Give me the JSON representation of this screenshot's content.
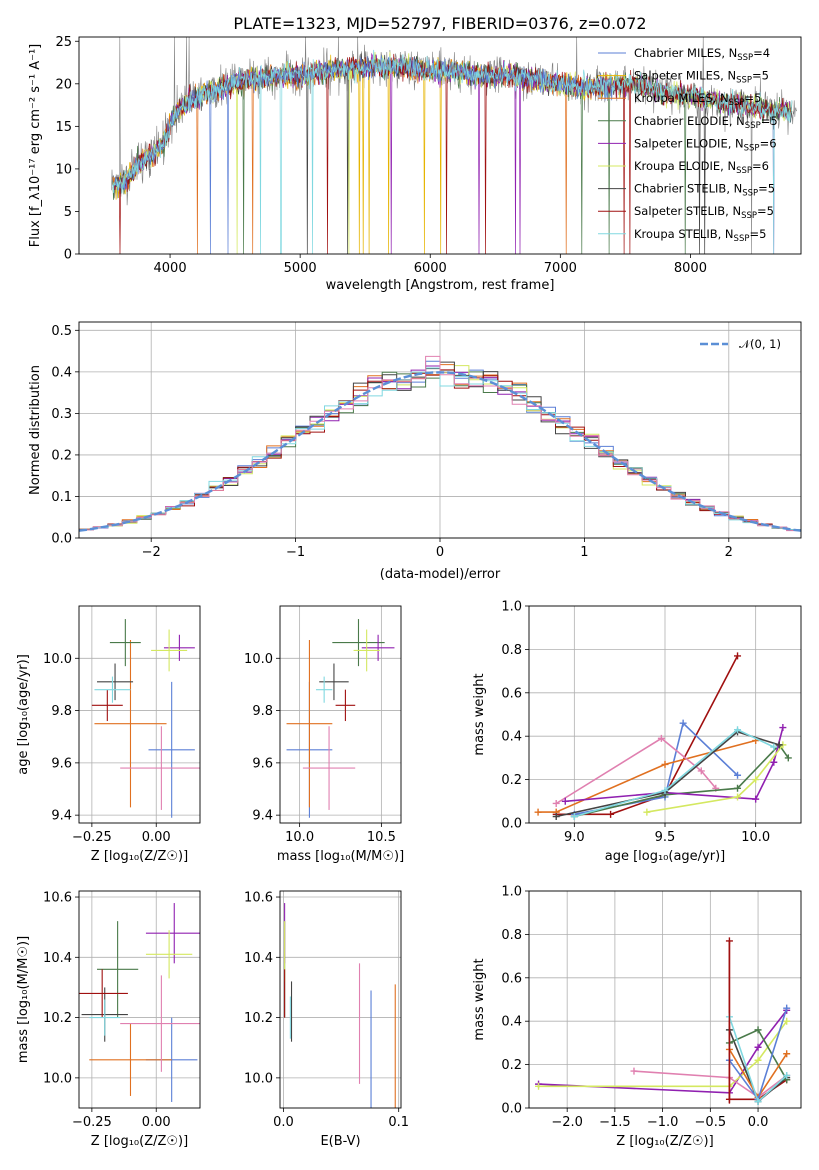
{
  "figure": {
    "title": "PLATE=1323, MJD=52797, FIBERID=0376, z=0.072"
  },
  "colors": {
    "Chabrier MILES": "#5b7fd6",
    "Salpeter MILES": "#e6b400",
    "Kroupa MILES": "#e07020",
    "Chabrier ELODIE": "#4a7a4a",
    "Salpeter ELODIE": "#9020b0",
    "Kroupa ELODIE": "#d4e860",
    "Chabrier STELIB": "#444444",
    "Salpeter STELIB": "#a01010",
    "Kroupa STELIB": "#80d8e0",
    "pink": "#e080b0",
    "data": "#808080",
    "normal": "#5b8fd6"
  },
  "chart_data": [
    {
      "id": "spectrum",
      "type": "line",
      "xlabel": "wavelength [Angstrom, rest frame]",
      "ylabel": "Flux [f_λ10⁻¹⁷ erg cm⁻² s⁻¹ A⁻¹]",
      "xlim": [
        3300,
        8850
      ],
      "ylim": [
        0,
        25.5
      ],
      "xticks": [
        4000,
        5000,
        6000,
        7000,
        8000
      ],
      "yticks": [
        0,
        5,
        10,
        15,
        20,
        25
      ],
      "continuum": {
        "x": [
          3550,
          3650,
          3750,
          3850,
          3950,
          4000,
          4100,
          4200,
          4400,
          4600,
          4800,
          5000,
          5200,
          5500,
          5800,
          6000,
          6200,
          6400,
          6600,
          6800,
          7000,
          7200,
          7400,
          7600,
          7800,
          8000,
          8200,
          8400,
          8600,
          8800
        ],
        "y": [
          8.0,
          8.5,
          10.5,
          11.5,
          13.0,
          15.5,
          17.5,
          18.5,
          19.5,
          20.5,
          21.0,
          21.0,
          21.5,
          22.0,
          22.0,
          21.5,
          21.5,
          21.0,
          21.0,
          20.5,
          20.0,
          19.5,
          20.0,
          20.0,
          19.0,
          18.5,
          18.0,
          17.5,
          17.0,
          16.5
        ]
      },
      "legend": [
        {
          "label": "Chabrier MILES, N_SSP=4",
          "text": "Chabrier MILES, N",
          "sub": "SSP",
          "n": "=4",
          "color_key": "Chabrier MILES"
        },
        {
          "label": "Salpeter MILES, N_SSP=5",
          "text": "Salpeter MILES, N",
          "sub": "SSP",
          "n": "=5",
          "color_key": "Salpeter MILES"
        },
        {
          "label": "Kroupa MILES, N_SSP=5",
          "text": "Kroupa MILES, N",
          "sub": "SSP",
          "n": "=5",
          "color_key": "Kroupa MILES"
        },
        {
          "label": "Chabrier ELODIE, N_SSP=5",
          "text": "Chabrier ELODIE, N",
          "sub": "SSP",
          "n": "=5",
          "color_key": "Chabrier ELODIE"
        },
        {
          "label": "Salpeter ELODIE, N_SSP=6",
          "text": "Salpeter ELODIE, N",
          "sub": "SSP",
          "n": "=6",
          "color_key": "Salpeter ELODIE"
        },
        {
          "label": "Kroupa ELODIE, N_SSP=6",
          "text": "Kroupa ELODIE, N",
          "sub": "SSP",
          "n": "=6",
          "color_key": "Kroupa ELODIE"
        },
        {
          "label": "Chabrier STELIB, N_SSP=5",
          "text": "Chabrier STELIB, N",
          "sub": "SSP",
          "n": "=5",
          "color_key": "Chabrier STELIB"
        },
        {
          "label": "Salpeter STELIB, N_SSP=5",
          "text": "Salpeter STELIB, N",
          "sub": "SSP",
          "n": "=5",
          "color_key": "Salpeter STELIB"
        },
        {
          "label": "Kroupa STELIB, N_SSP=5",
          "text": "Kroupa STELIB, N",
          "sub": "SSP",
          "n": "=5",
          "color_key": "Kroupa STELIB"
        }
      ],
      "legend_position": "right"
    },
    {
      "id": "residuals",
      "type": "histogram",
      "xlabel": "(data-model)/error",
      "ylabel": "Normed distribution",
      "xlim": [
        -2.5,
        2.5
      ],
      "ylim": [
        0,
        0.52
      ],
      "xticks": [
        -2,
        -1,
        0,
        1,
        2
      ],
      "yticks": [
        0.0,
        0.1,
        0.2,
        0.3,
        0.4,
        0.5
      ],
      "bin_width": 0.1,
      "reference": {
        "label": "𝒩(0, 1)",
        "mean": 0,
        "sigma": 1
      },
      "legend_position": "top-right"
    },
    {
      "id": "age-vs-Z",
      "type": "errorbar",
      "xlabel": "Z [log₁₀(Z/Z☉)]",
      "ylabel": "age  [log₁₀(age/yr)]",
      "xlim": [
        -0.3,
        0.17
      ],
      "ylim": [
        9.37,
        10.2
      ],
      "xticks": [
        -0.25,
        0.0
      ],
      "yticks": [
        9.4,
        9.6,
        9.8,
        10.0
      ],
      "points": [
        {
          "model": "Chabrier MILES",
          "x": 0.06,
          "xerr": 0.09,
          "y": 9.65,
          "yerr": 0.26
        },
        {
          "model": "Kroupa MILES",
          "x": -0.1,
          "xerr": 0.14,
          "y": 9.75,
          "yerr": 0.32
        },
        {
          "model": "pink",
          "x": 0.02,
          "xerr": 0.16,
          "y": 9.58,
          "yerr": 0.16
        },
        {
          "model": "Chabrier ELODIE",
          "x": -0.12,
          "xerr": 0.06,
          "y": 10.06,
          "yerr": 0.09
        },
        {
          "model": "Salpeter ELODIE",
          "x": 0.09,
          "xerr": 0.06,
          "y": 10.04,
          "yerr": 0.05
        },
        {
          "model": "Kroupa ELODIE",
          "x": 0.05,
          "xerr": 0.07,
          "y": 10.03,
          "yerr": 0.08
        },
        {
          "model": "Chabrier STELIB",
          "x": -0.16,
          "xerr": 0.07,
          "y": 9.91,
          "yerr": 0.07
        },
        {
          "model": "Salpeter STELIB",
          "x": -0.19,
          "xerr": 0.06,
          "y": 9.82,
          "yerr": 0.06
        },
        {
          "model": "Kroupa STELIB",
          "x": -0.17,
          "xerr": 0.07,
          "y": 9.88,
          "yerr": 0.05
        }
      ]
    },
    {
      "id": "age-vs-mass",
      "type": "errorbar",
      "xlabel": "mass [log₁₀(M/M☉)]",
      "ylabel": "",
      "xlim": [
        9.88,
        10.62
      ],
      "ylim": [
        9.37,
        10.2
      ],
      "xticks": [
        10.0,
        10.5
      ],
      "yticks": [
        9.4,
        9.6,
        9.8,
        10.0
      ],
      "points": [
        {
          "model": "Chabrier MILES",
          "x": 10.06,
          "xerr": 0.14,
          "y": 9.65,
          "yerr": 0.26
        },
        {
          "model": "Kroupa MILES",
          "x": 10.06,
          "xerr": 0.14,
          "y": 9.75,
          "yerr": 0.32
        },
        {
          "model": "pink",
          "x": 10.18,
          "xerr": 0.16,
          "y": 9.58,
          "yerr": 0.16
        },
        {
          "model": "Chabrier ELODIE",
          "x": 10.36,
          "xerr": 0.16,
          "y": 10.06,
          "yerr": 0.09
        },
        {
          "model": "Salpeter ELODIE",
          "x": 10.48,
          "xerr": 0.1,
          "y": 10.04,
          "yerr": 0.05
        },
        {
          "model": "Kroupa ELODIE",
          "x": 10.41,
          "xerr": 0.08,
          "y": 10.03,
          "yerr": 0.08
        },
        {
          "model": "Chabrier STELIB",
          "x": 10.21,
          "xerr": 0.09,
          "y": 9.91,
          "yerr": 0.07
        },
        {
          "model": "Salpeter STELIB",
          "x": 10.28,
          "xerr": 0.06,
          "y": 9.82,
          "yerr": 0.06
        },
        {
          "model": "Kroupa STELIB",
          "x": 10.15,
          "xerr": 0.05,
          "y": 9.88,
          "yerr": 0.05
        }
      ]
    },
    {
      "id": "mass-vs-Z",
      "type": "errorbar",
      "xlabel": "Z [log₁₀(Z/Z☉)]",
      "ylabel": "mass [log₁₀(M/M☉)]",
      "xlim": [
        -0.3,
        0.17
      ],
      "ylim": [
        9.9,
        10.62
      ],
      "xticks": [
        -0.25,
        0.0
      ],
      "yticks": [
        10.0,
        10.2,
        10.4,
        10.6
      ],
      "points": [
        {
          "model": "Chabrier MILES",
          "x": 0.06,
          "xerr": 0.1,
          "y": 10.06,
          "yerr": 0.14
        },
        {
          "model": "Kroupa MILES",
          "x": -0.1,
          "xerr": 0.16,
          "y": 10.06,
          "yerr": 0.12
        },
        {
          "model": "pink",
          "x": 0.02,
          "xerr": 0.16,
          "y": 10.18,
          "yerr": 0.16
        },
        {
          "model": "Chabrier ELODIE",
          "x": -0.15,
          "xerr": 0.08,
          "y": 10.36,
          "yerr": 0.16
        },
        {
          "model": "Salpeter ELODIE",
          "x": 0.07,
          "xerr": 0.11,
          "y": 10.48,
          "yerr": 0.1
        },
        {
          "model": "Kroupa ELODIE",
          "x": 0.05,
          "xerr": 0.09,
          "y": 10.41,
          "yerr": 0.08
        },
        {
          "model": "Chabrier STELIB",
          "x": -0.2,
          "xerr": 0.09,
          "y": 10.21,
          "yerr": 0.09
        },
        {
          "model": "Salpeter STELIB",
          "x": -0.21,
          "xerr": 0.1,
          "y": 10.28,
          "yerr": 0.08
        },
        {
          "model": "Kroupa STELIB",
          "x": -0.2,
          "xerr": 0.06,
          "y": 10.2,
          "yerr": 0.06
        }
      ]
    },
    {
      "id": "mass-vs-EBV",
      "type": "errorbar",
      "xlabel": "E(B-V)",
      "ylabel": "",
      "xlim": [
        -0.003,
        0.102
      ],
      "ylim": [
        9.9,
        10.62
      ],
      "xticks": [
        0.0,
        0.1
      ],
      "yticks": [
        10.0,
        10.2,
        10.4,
        10.6
      ],
      "points": [
        {
          "model": "Chabrier MILES",
          "x": 0.076,
          "xerr": 0,
          "y": 10.06,
          "yerr": 0.23
        },
        {
          "model": "Kroupa MILES",
          "x": 0.097,
          "xerr": 0,
          "y": 10.08,
          "yerr": 0.23
        },
        {
          "model": "pink",
          "x": 0.066,
          "xerr": 0,
          "y": 10.18,
          "yerr": 0.2
        },
        {
          "model": "Chabrier ELODIE",
          "x": 0.001,
          "xerr": 0,
          "y": 10.36,
          "yerr": 0.16
        },
        {
          "model": "Salpeter ELODIE",
          "x": 0.001,
          "xerr": 0,
          "y": 10.48,
          "yerr": 0.1
        },
        {
          "model": "Kroupa ELODIE",
          "x": 0.001,
          "xerr": 0,
          "y": 10.42,
          "yerr": 0.1
        },
        {
          "model": "Chabrier STELIB",
          "x": 0.007,
          "xerr": 0,
          "y": 10.22,
          "yerr": 0.1
        },
        {
          "model": "Salpeter STELIB",
          "x": 0.001,
          "xerr": 0,
          "y": 10.28,
          "yerr": 0.08
        },
        {
          "model": "Kroupa STELIB",
          "x": 0.006,
          "xerr": 0,
          "y": 10.2,
          "yerr": 0.07
        }
      ]
    },
    {
      "id": "weight-vs-age",
      "type": "line",
      "xlabel": "age  [log₁₀(age/yr)]",
      "ylabel": "mass weight",
      "xlim": [
        8.75,
        10.25
      ],
      "ylim": [
        0,
        1.0
      ],
      "xticks": [
        9.0,
        9.5,
        10.0
      ],
      "yticks": [
        0.0,
        0.2,
        0.4,
        0.6,
        0.8,
        1.0
      ],
      "series": [
        {
          "model": "Salpeter STELIB",
          "x": [
            8.9,
            9.2,
            9.5,
            9.9
          ],
          "y": [
            0.04,
            0.04,
            0.13,
            0.77
          ]
        },
        {
          "model": "Chabrier MILES",
          "x": [
            9.0,
            9.5,
            9.6,
            9.9
          ],
          "y": [
            0.04,
            0.12,
            0.46,
            0.22
          ]
        },
        {
          "model": "Kroupa MILES",
          "x": [
            8.8,
            8.9,
            9.5,
            10.0
          ],
          "y": [
            0.05,
            0.05,
            0.27,
            0.38
          ]
        },
        {
          "model": "pink",
          "x": [
            8.9,
            9.48,
            9.7,
            9.78
          ],
          "y": [
            0.09,
            0.39,
            0.24,
            0.16
          ]
        },
        {
          "model": "Chabrier ELODIE",
          "x": [
            9.0,
            9.5,
            9.9,
            10.13,
            10.18
          ],
          "y": [
            0.03,
            0.13,
            0.16,
            0.36,
            0.3
          ]
        },
        {
          "model": "Salpeter ELODIE",
          "x": [
            8.95,
            9.5,
            10.0,
            10.1,
            10.15
          ],
          "y": [
            0.1,
            0.14,
            0.11,
            0.28,
            0.44
          ]
        },
        {
          "model": "Kroupa ELODIE",
          "x": [
            9.4,
            9.9,
            10.0,
            10.15
          ],
          "y": [
            0.05,
            0.12,
            0.2,
            0.36
          ]
        },
        {
          "model": "Chabrier STELIB",
          "x": [
            8.9,
            9.5,
            9.9,
            10.13
          ],
          "y": [
            0.03,
            0.14,
            0.42,
            0.36
          ]
        },
        {
          "model": "Kroupa STELIB",
          "x": [
            9.0,
            9.5,
            9.9,
            10.1
          ],
          "y": [
            0.03,
            0.15,
            0.43,
            0.35
          ]
        }
      ]
    },
    {
      "id": "weight-vs-Z",
      "type": "line",
      "xlabel": "Z [log₁₀(Z/Z☉)]",
      "ylabel": "mass weight",
      "xlim": [
        -2.4,
        0.45
      ],
      "ylim": [
        0,
        1.0
      ],
      "xticks": [
        -2.0,
        -1.5,
        -1.0,
        -0.5,
        0.0
      ],
      "yticks": [
        0.0,
        0.2,
        0.4,
        0.6,
        0.8,
        1.0
      ],
      "series": [
        {
          "model": "Salpeter ELODIE",
          "x": [
            -2.3,
            -0.3,
            0.0,
            0.3
          ],
          "y": [
            0.11,
            0.07,
            0.28,
            0.45
          ]
        },
        {
          "model": "Kroupa ELODIE",
          "x": [
            -2.3,
            -0.3,
            0.0,
            0.3
          ],
          "y": [
            0.1,
            0.1,
            0.22,
            0.4
          ]
        },
        {
          "model": "pink",
          "x": [
            -1.3,
            -0.3,
            0.0,
            0.3
          ],
          "y": [
            0.17,
            0.14,
            0.05,
            0.15
          ]
        },
        {
          "model": "Salpeter STELIB",
          "x": [
            -0.3,
            -0.3,
            0.0,
            0.3
          ],
          "y": [
            0.77,
            0.04,
            0.04,
            0.13
          ]
        },
        {
          "model": "Chabrier STELIB",
          "x": [
            -0.3,
            0.0,
            0.3
          ],
          "y": [
            0.36,
            0.03,
            0.14
          ]
        },
        {
          "model": "Chabrier ELODIE",
          "x": [
            -0.3,
            0.0,
            0.3
          ],
          "y": [
            0.3,
            0.36,
            0.13
          ]
        },
        {
          "model": "Kroupa MILES",
          "x": [
            -0.3,
            0.0,
            0.3
          ],
          "y": [
            0.27,
            0.05,
            0.25
          ]
        },
        {
          "model": "Chabrier MILES",
          "x": [
            -0.3,
            0.0,
            0.3
          ],
          "y": [
            0.22,
            0.04,
            0.46
          ]
        },
        {
          "model": "Kroupa STELIB",
          "x": [
            -0.3,
            0.0,
            0.3
          ],
          "y": [
            0.42,
            0.03,
            0.15
          ]
        }
      ]
    }
  ]
}
